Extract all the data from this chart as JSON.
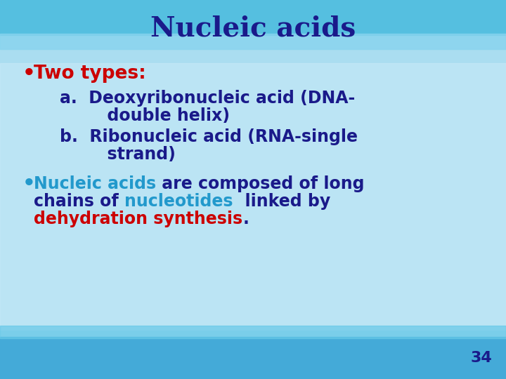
{
  "title": "Nucleic acids",
  "title_color": "#1a1a8a",
  "title_fontsize": 28,
  "bullet1_text": "Two types:",
  "bullet1_color": "#cc0000",
  "sub_a_line1": "a.  Deoxyribonucleic acid (DNA-",
  "sub_a_line2": "      double helix)",
  "sub_b_line1": "b.  Ribonucleic acid (RNA-single",
  "sub_b_line2": "      strand)",
  "sub_color": "#1a1a8a",
  "bullet2_p1": "Nucleic acids",
  "bullet2_p1_color": "#2299cc",
  "bullet2_p2": " are composed of long",
  "bullet2_p2_color": "#1a1a8a",
  "bullet2_l2_a": "chains of ",
  "bullet2_l2_b": "nucleotides",
  "bullet2_l2_b_color": "#2299cc",
  "bullet2_l2_c": "  linked by",
  "bullet2_l3": "dehydration synthesis",
  "bullet2_l3_color": "#cc0000",
  "bullet2_dot": ".",
  "bullet2_dot_color": "#1a1a8a",
  "page_number": "34",
  "page_number_color": "#1a1a8a",
  "font_size_body": 17,
  "font_size_bullet1": 19,
  "bg_main": "#aaddf0",
  "bg_top_stripe": "#55bfe0",
  "bg_bottom_stripe": "#44aad8",
  "bg_light_center": "#c8eaf8"
}
